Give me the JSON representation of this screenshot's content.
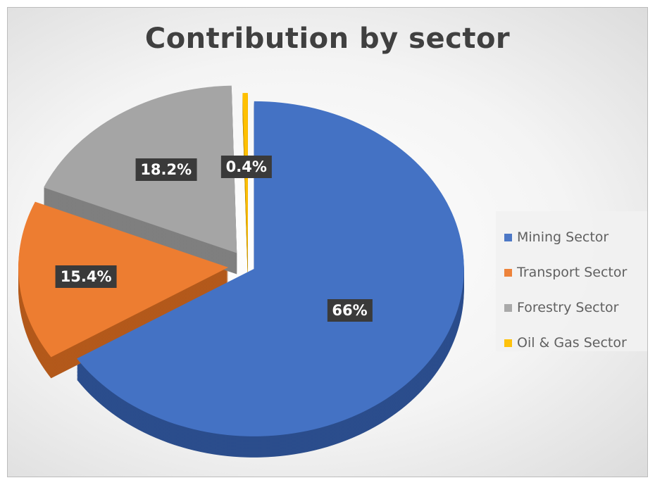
{
  "chart_data": {
    "type": "pie",
    "title": "Contribution by sector",
    "categories": [
      "Mining Sector",
      "Transport Sector",
      "Forestry Sector",
      "Oil & Gas Sector"
    ],
    "values": [
      66,
      15.4,
      18.2,
      0.4
    ],
    "data_labels": [
      "66%",
      "15.4%",
      "18.2%",
      "0.4%"
    ],
    "colors": [
      "#4472c4",
      "#ed7d31",
      "#a5a5a5",
      "#ffc000"
    ],
    "side_colors": [
      "#2b4d8c",
      "#b3591b",
      "#7f7f7f",
      "#c49200"
    ],
    "legend_position": "right",
    "style": "3d-exploded"
  }
}
